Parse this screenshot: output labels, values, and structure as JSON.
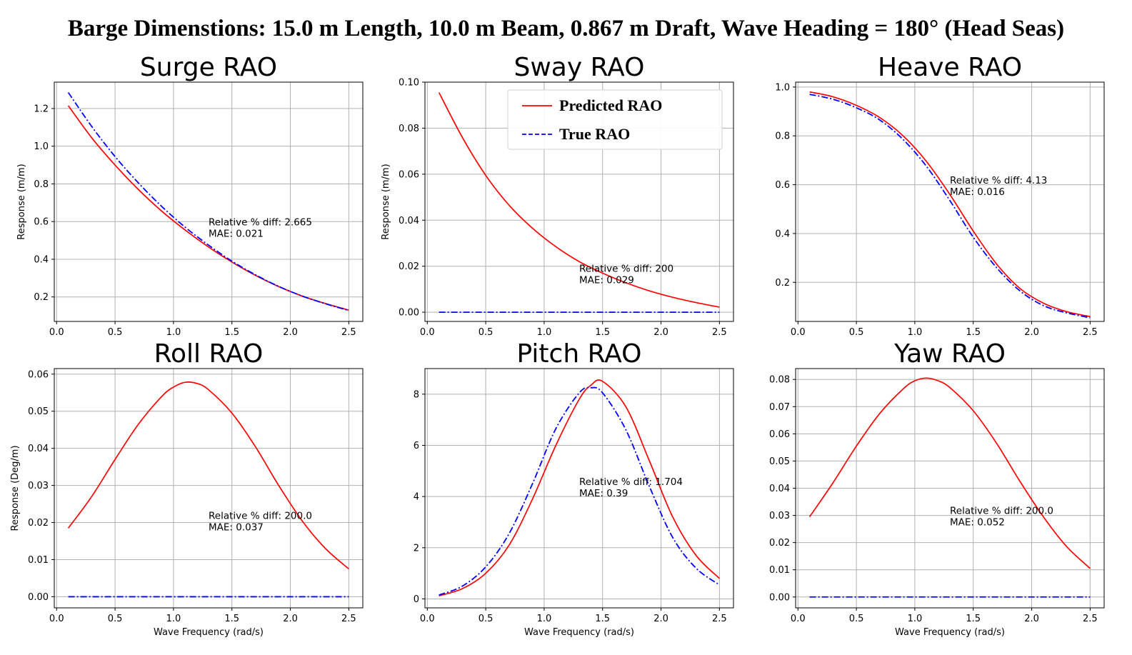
{
  "figure": {
    "suptitle": "Barge Dimenstions: 15.0 m Length, 10.0 m Beam, 0.867 m Draft, Wave Heading = 180° (Head Seas)"
  },
  "colors": {
    "predicted": "#ff0000",
    "true": "#0000ff",
    "grid": "#b0b0b0"
  },
  "legend": {
    "items": [
      "Predicted RAO",
      "True RAO"
    ],
    "location": "upper-right of Sway RAO panel"
  },
  "chart_data": [
    {
      "type": "line",
      "title": "Surge RAO",
      "xlabel": "",
      "ylabel": "Response (m/m)",
      "xlim": [
        -0.02,
        2.62
      ],
      "ylim": [
        0.07,
        1.34
      ],
      "xticks": [
        0.0,
        0.5,
        1.0,
        1.5,
        2.0,
        2.5
      ],
      "yticks": [
        0.2,
        0.4,
        0.6,
        0.8,
        1.0,
        1.2
      ],
      "annotation": [
        "Relative % diff: 2.665",
        "MAE: 0.021"
      ],
      "annotation_at": [
        1.3,
        0.58
      ],
      "series": [
        {
          "name": "Predicted RAO",
          "x": [
            0.1,
            0.3,
            0.5,
            0.7,
            0.9,
            1.1,
            1.3,
            1.5,
            1.7,
            1.9,
            2.1,
            2.3,
            2.5
          ],
          "y": [
            1.215,
            1.045,
            0.9,
            0.77,
            0.655,
            0.555,
            0.465,
            0.385,
            0.315,
            0.255,
            0.205,
            0.165,
            0.13
          ]
        },
        {
          "name": "True RAO",
          "x": [
            0.1,
            0.3,
            0.5,
            0.7,
            0.9,
            1.1,
            1.3,
            1.5,
            1.7,
            1.9,
            2.1,
            2.3,
            2.5
          ],
          "y": [
            1.285,
            1.105,
            0.945,
            0.805,
            0.68,
            0.57,
            0.475,
            0.39,
            0.318,
            0.256,
            0.205,
            0.164,
            0.128
          ]
        }
      ]
    },
    {
      "type": "line",
      "title": "Sway RAO",
      "xlabel": "",
      "ylabel": "Response (m/m)",
      "xlim": [
        -0.02,
        2.62
      ],
      "ylim": [
        -0.004,
        0.1
      ],
      "xticks": [
        0.0,
        0.5,
        1.0,
        1.5,
        2.0,
        2.5
      ],
      "yticks": [
        0.0,
        0.02,
        0.04,
        0.06,
        0.08,
        0.1
      ],
      "annotation": [
        "Relative % diff: 200",
        "MAE: 0.029"
      ],
      "annotation_at": [
        1.3,
        0.0175
      ],
      "series": [
        {
          "name": "Predicted RAO",
          "x": [
            0.1,
            0.3,
            0.5,
            0.7,
            0.9,
            1.1,
            1.3,
            1.5,
            1.7,
            1.9,
            2.1,
            2.3,
            2.5
          ],
          "y": [
            0.0955,
            0.076,
            0.0595,
            0.0465,
            0.0365,
            0.0285,
            0.022,
            0.017,
            0.0128,
            0.0093,
            0.0065,
            0.0042,
            0.0022
          ]
        },
        {
          "name": "True RAO",
          "x": [
            0.1,
            2.5
          ],
          "y": [
            0.0,
            0.0
          ]
        }
      ]
    },
    {
      "type": "line",
      "title": "Heave RAO",
      "xlabel": "",
      "ylabel": "",
      "xlim": [
        -0.02,
        2.62
      ],
      "ylim": [
        0.04,
        1.02
      ],
      "xticks": [
        0.0,
        0.5,
        1.0,
        1.5,
        2.0,
        2.5
      ],
      "yticks": [
        0.2,
        0.4,
        0.6,
        0.8,
        1.0
      ],
      "annotation": [
        "Relative % diff: 4.13",
        "MAE: 0.016"
      ],
      "annotation_at": [
        1.3,
        0.605
      ],
      "series": [
        {
          "name": "Predicted RAO",
          "x": [
            0.1,
            0.3,
            0.5,
            0.7,
            0.9,
            1.1,
            1.3,
            1.5,
            1.7,
            1.9,
            2.1,
            2.3,
            2.5
          ],
          "y": [
            0.98,
            0.96,
            0.925,
            0.875,
            0.8,
            0.695,
            0.56,
            0.41,
            0.275,
            0.175,
            0.115,
            0.08,
            0.06
          ]
        },
        {
          "name": "True RAO",
          "x": [
            0.1,
            0.3,
            0.5,
            0.7,
            0.9,
            1.1,
            1.3,
            1.5,
            1.7,
            1.9,
            2.1,
            2.3,
            2.5
          ],
          "y": [
            0.97,
            0.95,
            0.915,
            0.865,
            0.785,
            0.675,
            0.535,
            0.385,
            0.26,
            0.165,
            0.105,
            0.075,
            0.055
          ]
        }
      ]
    },
    {
      "type": "line",
      "title": "Roll RAO",
      "xlabel": "Wave Frequency (rad/s)",
      "ylabel": "Response (Deg/m)",
      "xlim": [
        -0.02,
        2.62
      ],
      "ylim": [
        -0.003,
        0.0615
      ],
      "xticks": [
        0.0,
        0.5,
        1.0,
        1.5,
        2.0,
        2.5
      ],
      "yticks": [
        0.0,
        0.01,
        0.02,
        0.03,
        0.04,
        0.05,
        0.06
      ],
      "annotation": [
        "Relative % diff: 200.0",
        "MAE: 0.037"
      ],
      "annotation_at": [
        1.3,
        0.021
      ],
      "series": [
        {
          "name": "Predicted RAO",
          "x": [
            0.1,
            0.3,
            0.5,
            0.7,
            0.9,
            1.0,
            1.1,
            1.2,
            1.3,
            1.5,
            1.7,
            1.9,
            2.1,
            2.3,
            2.5
          ],
          "y": [
            0.0185,
            0.027,
            0.037,
            0.0465,
            0.054,
            0.0565,
            0.0578,
            0.0575,
            0.0558,
            0.0495,
            0.0405,
            0.03,
            0.0205,
            0.013,
            0.0075
          ]
        },
        {
          "name": "True RAO",
          "x": [
            0.1,
            2.5
          ],
          "y": [
            0.0,
            0.0
          ]
        }
      ]
    },
    {
      "type": "line",
      "title": "Pitch RAO",
      "xlabel": "Wave Frequency (rad/s)",
      "ylabel": "",
      "xlim": [
        -0.02,
        2.62
      ],
      "ylim": [
        -0.35,
        9.0
      ],
      "xticks": [
        0.0,
        0.5,
        1.0,
        1.5,
        2.0,
        2.5
      ],
      "yticks": [
        0,
        2,
        4,
        6,
        8
      ],
      "annotation": [
        "Relative % diff: 1.704",
        "MAE: 0.39"
      ],
      "annotation_at": [
        1.3,
        4.45
      ],
      "series": [
        {
          "name": "Predicted RAO",
          "x": [
            0.1,
            0.3,
            0.5,
            0.7,
            0.9,
            1.1,
            1.3,
            1.4,
            1.5,
            1.7,
            1.9,
            2.1,
            2.3,
            2.5
          ],
          "y": [
            0.12,
            0.4,
            1.0,
            2.1,
            3.9,
            6.0,
            7.8,
            8.35,
            8.5,
            7.5,
            5.4,
            3.2,
            1.7,
            0.8
          ]
        },
        {
          "name": "True RAO",
          "x": [
            0.1,
            0.3,
            0.5,
            0.7,
            0.9,
            1.1,
            1.3,
            1.4,
            1.5,
            1.7,
            1.9,
            2.1,
            2.3,
            2.5
          ],
          "y": [
            0.15,
            0.5,
            1.25,
            2.55,
            4.5,
            6.65,
            8.05,
            8.25,
            8.05,
            6.6,
            4.4,
            2.4,
            1.2,
            0.55
          ]
        }
      ]
    },
    {
      "type": "line",
      "title": "Yaw RAO",
      "xlabel": "Wave Frequency (rad/s)",
      "ylabel": "",
      "xlim": [
        -0.02,
        2.62
      ],
      "ylim": [
        -0.004,
        0.084
      ],
      "xticks": [
        0.0,
        0.5,
        1.0,
        1.5,
        2.0,
        2.5
      ],
      "yticks": [
        0.0,
        0.01,
        0.02,
        0.03,
        0.04,
        0.05,
        0.06,
        0.07,
        0.08
      ],
      "annotation": [
        "Relative % diff: 200.0",
        "MAE: 0.052"
      ],
      "annotation_at": [
        1.3,
        0.0305
      ],
      "series": [
        {
          "name": "Predicted RAO",
          "x": [
            0.1,
            0.3,
            0.5,
            0.7,
            0.9,
            1.0,
            1.1,
            1.2,
            1.3,
            1.5,
            1.7,
            1.9,
            2.1,
            2.3,
            2.5
          ],
          "y": [
            0.0295,
            0.042,
            0.0555,
            0.0675,
            0.0765,
            0.0795,
            0.0805,
            0.0795,
            0.077,
            0.0685,
            0.0565,
            0.0425,
            0.0295,
            0.0185,
            0.0105
          ]
        },
        {
          "name": "True RAO",
          "x": [
            0.1,
            2.5
          ],
          "y": [
            0.0,
            0.0
          ]
        }
      ]
    }
  ]
}
